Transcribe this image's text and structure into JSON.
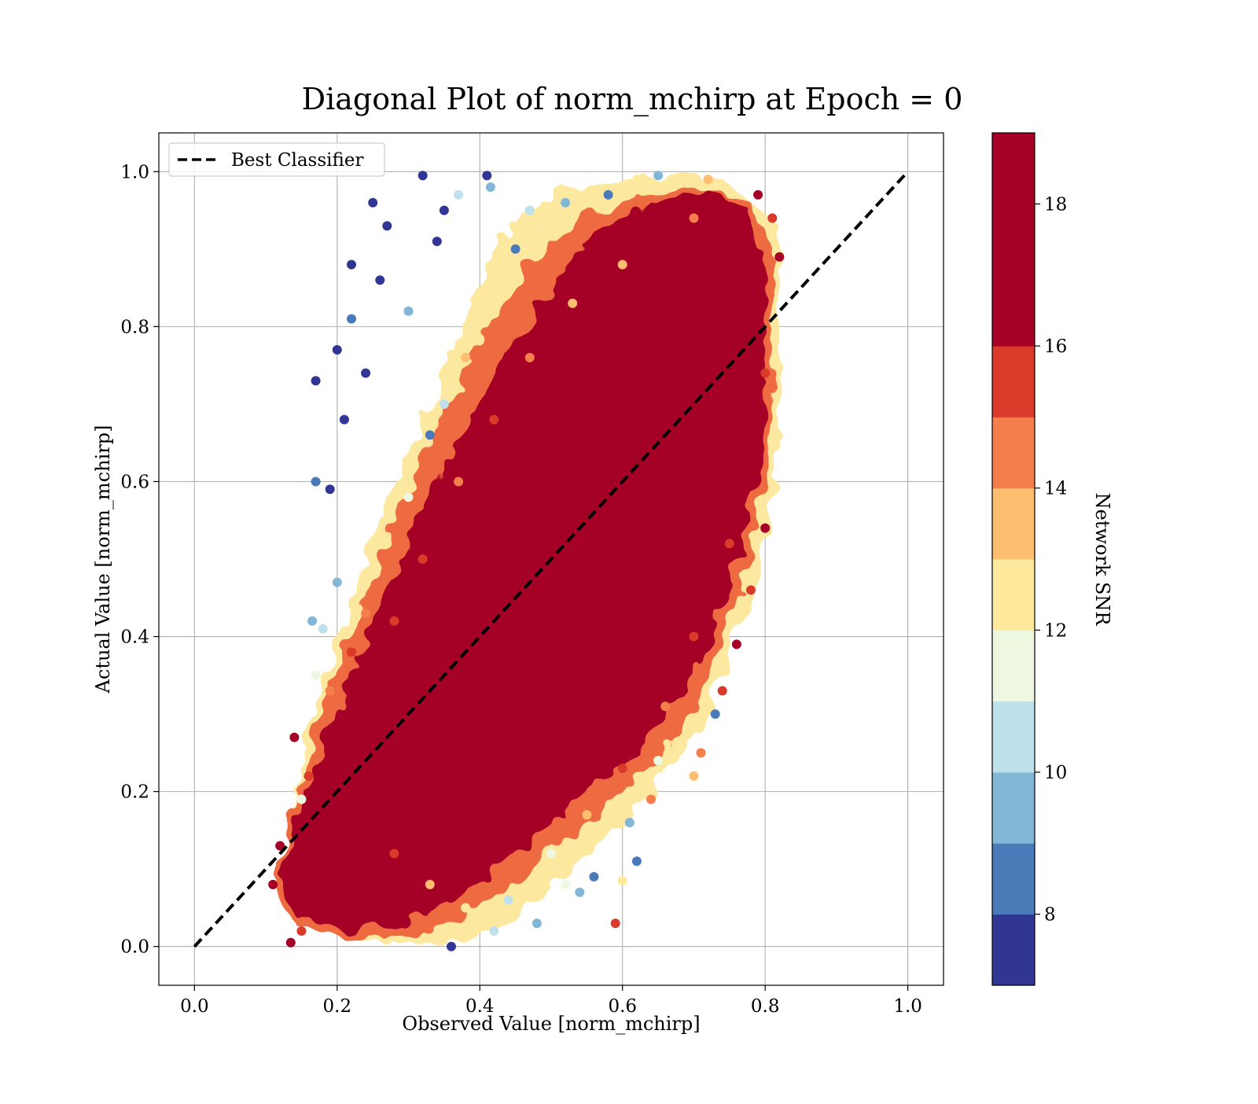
{
  "chart_data": {
    "type": "scatter",
    "title": "Diagonal Plot of norm_mchirp at Epoch = 0",
    "xlabel": "Observed Value [norm_mchirp]",
    "ylabel": "Actual Value [norm_mchirp]",
    "xlim": [
      -0.05,
      1.05
    ],
    "ylim": [
      -0.05,
      1.05
    ],
    "xticks": [
      "0.0",
      "0.2",
      "0.4",
      "0.6",
      "0.8",
      "1.0"
    ],
    "yticks": [
      "0.0",
      "0.2",
      "0.4",
      "0.6",
      "0.8",
      "1.0"
    ],
    "grid": true,
    "legend": {
      "position": "top-left",
      "entries": [
        "Best Classifier"
      ]
    },
    "reference_line": {
      "name": "Best Classifier",
      "style": "dashed",
      "color": "#000000",
      "x": [
        0.0,
        1.0
      ],
      "y": [
        0.0,
        1.0
      ]
    },
    "colorbar": {
      "label": "Network SNR",
      "range": [
        7,
        19
      ],
      "ticks": [
        "8",
        "10",
        "12",
        "14",
        "16",
        "18"
      ],
      "tick_values": [
        8,
        10,
        12,
        14,
        16,
        18
      ],
      "bins": [
        {
          "from": 7,
          "to": 8,
          "color": "#313695"
        },
        {
          "from": 8,
          "to": 9,
          "color": "#4a7ab7"
        },
        {
          "from": 9,
          "to": 10,
          "color": "#83b7d7"
        },
        {
          "from": 10,
          "to": 11,
          "color": "#bfe1ec"
        },
        {
          "from": 11,
          "to": 12,
          "color": "#eef7df"
        },
        {
          "from": 12,
          "to": 13,
          "color": "#fee99d"
        },
        {
          "from": 13,
          "to": 14,
          "color": "#fdbe70"
        },
        {
          "from": 14,
          "to": 15,
          "color": "#f57e4d"
        },
        {
          "from": 15,
          "to": 16,
          "color": "#d93a29"
        },
        {
          "from": 16,
          "to": 19,
          "color": "#a50026"
        }
      ]
    },
    "series": [
      {
        "color_by": "Network SNR",
        "points": [
          {
            "x": 0.13,
            "y": 0.1,
            "snr": 17.8
          },
          {
            "x": 0.12,
            "y": 0.13,
            "snr": 16.5
          },
          {
            "x": 0.11,
            "y": 0.08,
            "snr": 18.2
          },
          {
            "x": 0.135,
            "y": 0.005,
            "snr": 17.0
          },
          {
            "x": 0.15,
            "y": 0.02,
            "snr": 15.5
          },
          {
            "x": 0.14,
            "y": 0.27,
            "snr": 16.8
          },
          {
            "x": 0.16,
            "y": 0.22,
            "snr": 15.2
          },
          {
            "x": 0.15,
            "y": 0.19,
            "snr": 11.0
          },
          {
            "x": 0.165,
            "y": 0.42,
            "snr": 9.0
          },
          {
            "x": 0.17,
            "y": 0.73,
            "snr": 7.5
          },
          {
            "x": 0.17,
            "y": 0.6,
            "snr": 8.5
          },
          {
            "x": 0.19,
            "y": 0.59,
            "snr": 7.8
          },
          {
            "x": 0.2,
            "y": 0.77,
            "snr": 7.6
          },
          {
            "x": 0.21,
            "y": 0.68,
            "snr": 7.5
          },
          {
            "x": 0.22,
            "y": 0.81,
            "snr": 8.6
          },
          {
            "x": 0.22,
            "y": 0.88,
            "snr": 7.4
          },
          {
            "x": 0.25,
            "y": 0.96,
            "snr": 7.3
          },
          {
            "x": 0.27,
            "y": 0.93,
            "snr": 7.5
          },
          {
            "x": 0.32,
            "y": 0.995,
            "snr": 7.4
          },
          {
            "x": 0.35,
            "y": 0.95,
            "snr": 7.6
          },
          {
            "x": 0.37,
            "y": 0.97,
            "snr": 10.5
          },
          {
            "x": 0.41,
            "y": 0.995,
            "snr": 7.8
          },
          {
            "x": 0.415,
            "y": 0.98,
            "snr": 9.5
          },
          {
            "x": 0.34,
            "y": 0.91,
            "snr": 7.9
          },
          {
            "x": 0.3,
            "y": 0.82,
            "snr": 9.2
          },
          {
            "x": 0.26,
            "y": 0.86,
            "snr": 7.5
          },
          {
            "x": 0.24,
            "y": 0.74,
            "snr": 7.7
          },
          {
            "x": 0.2,
            "y": 0.47,
            "snr": 9.8
          },
          {
            "x": 0.18,
            "y": 0.41,
            "snr": 10.8
          },
          {
            "x": 0.17,
            "y": 0.35,
            "snr": 11.6
          },
          {
            "x": 0.59,
            "y": 0.03,
            "snr": 15.3
          },
          {
            "x": 0.62,
            "y": 0.11,
            "snr": 8.0
          },
          {
            "x": 0.56,
            "y": 0.09,
            "snr": 8.2
          },
          {
            "x": 0.61,
            "y": 0.16,
            "snr": 9.2
          },
          {
            "x": 0.6,
            "y": 0.085,
            "snr": 12.5
          },
          {
            "x": 0.54,
            "y": 0.07,
            "snr": 9.8
          },
          {
            "x": 0.52,
            "y": 0.08,
            "snr": 11.2
          },
          {
            "x": 0.48,
            "y": 0.03,
            "snr": 9.5
          },
          {
            "x": 0.36,
            "y": 0.0,
            "snr": 7.6
          },
          {
            "x": 0.42,
            "y": 0.02,
            "snr": 10.9
          },
          {
            "x": 0.64,
            "y": 0.19,
            "snr": 14.5
          },
          {
            "x": 0.65,
            "y": 0.24,
            "snr": 11.5
          },
          {
            "x": 0.7,
            "y": 0.22,
            "snr": 13.0
          },
          {
            "x": 0.71,
            "y": 0.25,
            "snr": 14.2
          },
          {
            "x": 0.73,
            "y": 0.3,
            "snr": 8.0
          },
          {
            "x": 0.74,
            "y": 0.33,
            "snr": 15.0
          },
          {
            "x": 0.76,
            "y": 0.39,
            "snr": 17.0
          },
          {
            "x": 0.78,
            "y": 0.46,
            "snr": 15.8
          },
          {
            "x": 0.8,
            "y": 0.54,
            "snr": 17.5
          },
          {
            "x": 0.82,
            "y": 0.89,
            "snr": 17.6
          },
          {
            "x": 0.81,
            "y": 0.94,
            "snr": 15.1
          },
          {
            "x": 0.79,
            "y": 0.97,
            "snr": 16.2
          },
          {
            "x": 0.72,
            "y": 0.99,
            "snr": 13.5
          },
          {
            "x": 0.65,
            "y": 0.995,
            "snr": 9.6
          },
          {
            "x": 0.62,
            "y": 0.99,
            "snr": 12.2
          },
          {
            "x": 0.58,
            "y": 0.97,
            "snr": 8.3
          },
          {
            "x": 0.52,
            "y": 0.96,
            "snr": 9.0
          },
          {
            "x": 0.47,
            "y": 0.95,
            "snr": 10.3
          },
          {
            "x": 0.45,
            "y": 0.9,
            "snr": 8.1
          },
          {
            "x": 0.4,
            "y": 0.84,
            "snr": 12.8
          },
          {
            "x": 0.38,
            "y": 0.76,
            "snr": 13.4
          },
          {
            "x": 0.35,
            "y": 0.7,
            "snr": 10.4
          },
          {
            "x": 0.33,
            "y": 0.66,
            "snr": 8.4
          },
          {
            "x": 0.3,
            "y": 0.58,
            "snr": 11.3
          },
          {
            "x": 0.27,
            "y": 0.52,
            "snr": 12.4
          },
          {
            "x": 0.24,
            "y": 0.43,
            "snr": 14.4
          },
          {
            "x": 0.22,
            "y": 0.38,
            "snr": 15.6
          },
          {
            "x": 0.19,
            "y": 0.33,
            "snr": 14.8
          },
          {
            "x": 0.28,
            "y": 0.12,
            "snr": 15.4
          },
          {
            "x": 0.33,
            "y": 0.08,
            "snr": 13.7
          },
          {
            "x": 0.38,
            "y": 0.05,
            "snr": 12.3
          },
          {
            "x": 0.44,
            "y": 0.06,
            "snr": 10.2
          },
          {
            "x": 0.5,
            "y": 0.12,
            "snr": 11.4
          },
          {
            "x": 0.55,
            "y": 0.17,
            "snr": 13.1
          },
          {
            "x": 0.6,
            "y": 0.23,
            "snr": 15.2
          },
          {
            "x": 0.66,
            "y": 0.31,
            "snr": 14.1
          },
          {
            "x": 0.7,
            "y": 0.4,
            "snr": 15.9
          },
          {
            "x": 0.75,
            "y": 0.52,
            "snr": 15.3
          },
          {
            "x": 0.78,
            "y": 0.62,
            "snr": 16.5
          },
          {
            "x": 0.8,
            "y": 0.74,
            "snr": 15.2
          },
          {
            "x": 0.79,
            "y": 0.85,
            "snr": 17.8
          },
          {
            "x": 0.7,
            "y": 0.94,
            "snr": 14.6
          },
          {
            "x": 0.6,
            "y": 0.88,
            "snr": 13.6
          },
          {
            "x": 0.53,
            "y": 0.83,
            "snr": 13.2
          },
          {
            "x": 0.47,
            "y": 0.76,
            "snr": 14.9
          },
          {
            "x": 0.42,
            "y": 0.68,
            "snr": 15.7
          },
          {
            "x": 0.37,
            "y": 0.6,
            "snr": 14.3
          },
          {
            "x": 0.32,
            "y": 0.5,
            "snr": 15.5
          },
          {
            "x": 0.28,
            "y": 0.42,
            "snr": 15.1
          }
        ]
      }
    ],
    "dense_core": "most points lie in a band around the diagonal spanning observed 0.12-0.80 and actual 0.0-1.0; high-SNR (dark red) points dominate the center, low-SNR (blue) points fan out at the upper-left and lower-right edges"
  }
}
